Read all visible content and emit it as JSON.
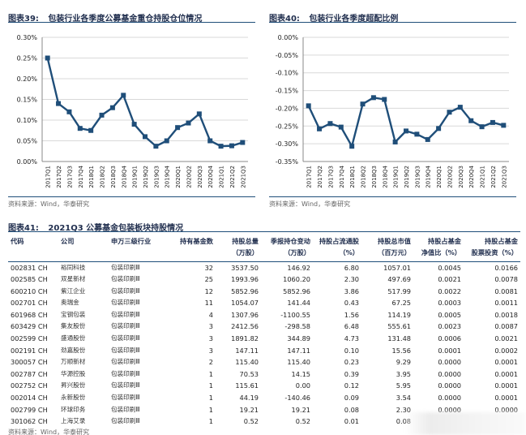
{
  "fig39": {
    "number": "图表39:",
    "title": "包装行业各季度公募基金重仓持股仓位情况",
    "source": "资料来源：Wind，华泰研究"
  },
  "fig40": {
    "number": "图表40:",
    "title": "包装行业各季度超配比例",
    "source": "资料来源：Wind，华泰研究"
  },
  "fig41": {
    "number": "图表41:",
    "title": "2021Q3 公募基金包装板块持股情况",
    "source": "资料来源：Wind，华泰研究"
  },
  "colors": {
    "series": "#1f4e79",
    "grid": "#d9d9d9",
    "rule": "#1f4e79"
  },
  "chart_data": [
    {
      "type": "line",
      "title": "包装行业各季度公募基金重仓持股仓位情况",
      "xlabel": "",
      "ylabel": "",
      "ylim": [
        0,
        0.3
      ],
      "yticks": [
        "0.00%",
        "0.05%",
        "0.10%",
        "0.15%",
        "0.20%",
        "0.25%",
        "0.30%"
      ],
      "grid": true,
      "categories": [
        "2017Q1",
        "2017Q2",
        "2017Q3",
        "2017Q4",
        "2018Q1",
        "2018Q2",
        "2018Q3",
        "2018Q4",
        "2019Q1",
        "2019Q2",
        "2019Q3",
        "2019Q4",
        "2020Q1",
        "2020Q2",
        "2020Q3",
        "2020Q4",
        "2021Q1",
        "2021Q2",
        "2021Q3"
      ],
      "values": [
        0.25,
        0.14,
        0.12,
        0.08,
        0.075,
        0.112,
        0.13,
        0.16,
        0.09,
        0.06,
        0.037,
        0.05,
        0.082,
        0.093,
        0.115,
        0.05,
        0.037,
        0.038,
        0.046
      ]
    },
    {
      "type": "line",
      "title": "包装行业各季度超配比例",
      "xlabel": "",
      "ylabel": "",
      "ylim": [
        -0.35,
        0
      ],
      "yticks": [
        "0.00%",
        "-0.05%",
        "-0.10%",
        "-0.15%",
        "-0.20%",
        "-0.25%",
        "-0.30%",
        "-0.35%"
      ],
      "grid": true,
      "categories": [
        "2017Q1",
        "2017Q2",
        "2017Q3",
        "2017Q4",
        "2018Q1",
        "2018Q2",
        "2018Q3",
        "2018Q4",
        "2019Q1",
        "2019Q2",
        "2019Q3",
        "2019Q4",
        "2020Q1",
        "2020Q2",
        "2020Q3",
        "2020Q4",
        "2021Q1",
        "2021Q2",
        "2021Q3"
      ],
      "values": [
        -0.193,
        -0.258,
        -0.243,
        -0.253,
        -0.307,
        -0.188,
        -0.17,
        -0.175,
        -0.295,
        -0.264,
        -0.273,
        -0.288,
        -0.257,
        -0.211,
        -0.197,
        -0.235,
        -0.252,
        -0.24,
        -0.248
      ]
    },
    {
      "type": "table",
      "columns": [
        "代码",
        "公司",
        "申万三级行业",
        "持有基金数",
        "持股总量\n（万股）",
        "季报持仓变动\n（万股）",
        "持股占流通股\n（%）",
        "持股总市值\n（百万元）",
        "持股占基金\n净值比（%）",
        "持股占基金\n股票投资（%）"
      ],
      "rows": [
        [
          "002831 CH",
          "裕同科技",
          "包装印刷Ⅲ",
          "32",
          "3537.50",
          "146.92",
          "6.80",
          "1057.01",
          "0.0045",
          "0.0166"
        ],
        [
          "002585 CH",
          "双星新材",
          "包装印刷Ⅲ",
          "25",
          "1993.96",
          "1060.20",
          "2.30",
          "497.69",
          "0.0021",
          "0.0078"
        ],
        [
          "600210 CH",
          "紫江企业",
          "包装印刷Ⅲ",
          "12",
          "5852.96",
          "5852.96",
          "3.86",
          "517.99",
          "0.0022",
          "0.0081"
        ],
        [
          "002701 CH",
          "奥瑞金",
          "包装印刷Ⅲ",
          "11",
          "1054.07",
          "141.44",
          "0.43",
          "67.25",
          "0.0003",
          "0.0011"
        ],
        [
          "601968 CH",
          "宝钢包装",
          "包装印刷Ⅲ",
          "4",
          "1307.96",
          "-1100.55",
          "1.56",
          "114.19",
          "0.0005",
          "0.0018"
        ],
        [
          "603429 CH",
          "集友股份",
          "包装印刷Ⅲ",
          "3",
          "2412.56",
          "-298.58",
          "6.48",
          "555.61",
          "0.0023",
          "0.0087"
        ],
        [
          "002599 CH",
          "盛通股份",
          "包装印刷Ⅲ",
          "3",
          "1891.82",
          "344.89",
          "4.73",
          "131.48",
          "0.0006",
          "0.0021"
        ],
        [
          "002191 CH",
          "劲嘉股份",
          "包装印刷Ⅲ",
          "3",
          "147.11",
          "147.11",
          "0.10",
          "15.56",
          "0.0001",
          "0.0002"
        ],
        [
          "300057 CH",
          "万顺新材",
          "包装印刷Ⅲ",
          "2",
          "115.40",
          "115.40",
          "0.23",
          "9.29",
          "0.0000",
          "0.0001"
        ],
        [
          "002787 CH",
          "华源控股",
          "包装印刷Ⅲ",
          "1",
          "70.53",
          "14.15",
          "0.39",
          "3.95",
          "0.0000",
          "0.0001"
        ],
        [
          "002752 CH",
          "昇兴股份",
          "包装印刷Ⅲ",
          "1",
          "115.61",
          "0.00",
          "0.12",
          "5.95",
          "0.0000",
          "0.0001"
        ],
        [
          "002014 CH",
          "永新股份",
          "包装印刷Ⅲ",
          "1",
          "44.19",
          "-140.46",
          "0.09",
          "3.54",
          "0.0000",
          "0.0001"
        ],
        [
          "002799 CH",
          "环球印务",
          "包装印刷Ⅲ",
          "1",
          "19.21",
          "19.21",
          "0.08",
          "2.30",
          "0.0000",
          "0.0000"
        ],
        [
          "301062 CH",
          "上海艾录",
          "包装印刷Ⅲ",
          "1",
          "0.52",
          "0.52",
          "0.01",
          "0.08",
          "",
          ""
        ]
      ]
    }
  ]
}
